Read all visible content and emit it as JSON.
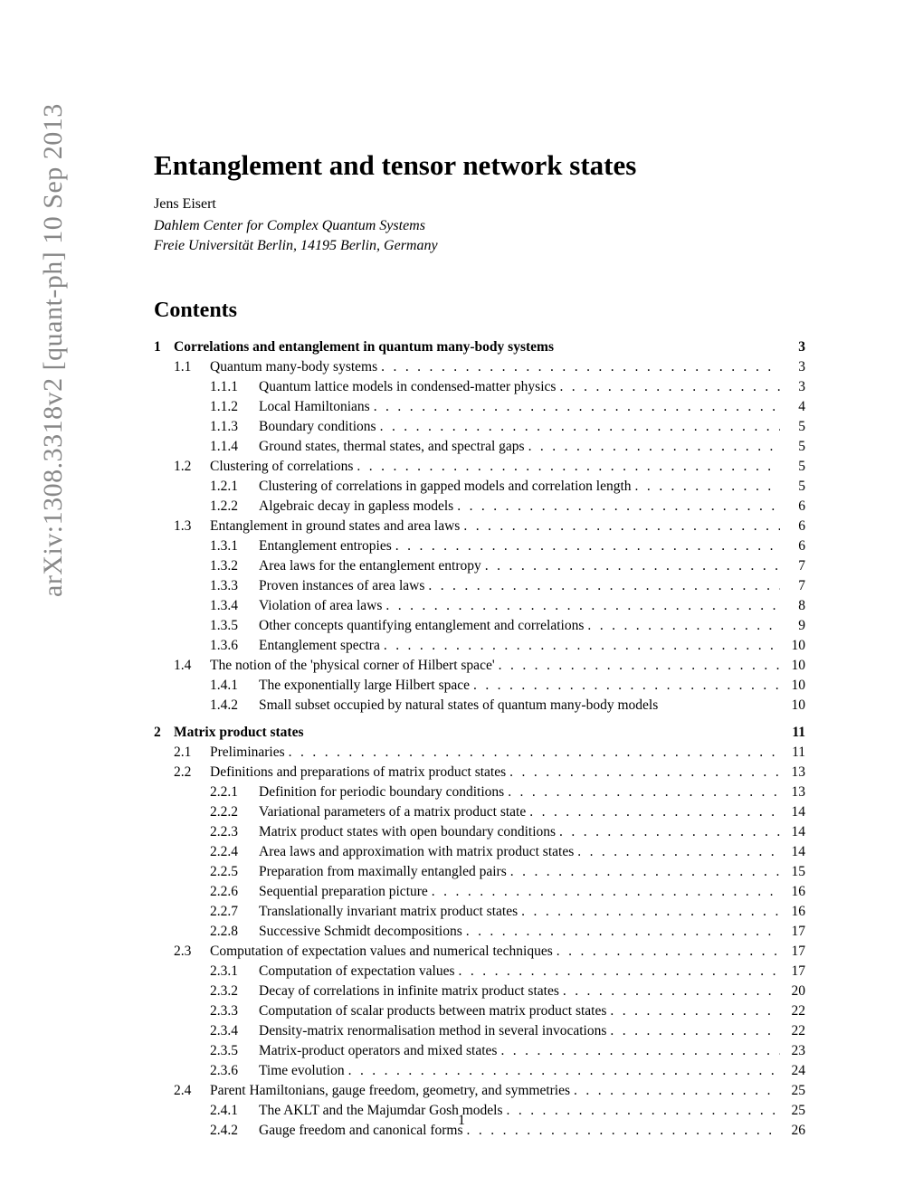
{
  "arxiv_stamp": "arXiv:1308.3318v2  [quant-ph]  10 Sep 2013",
  "title": "Entanglement and tensor network states",
  "author": "Jens Eisert",
  "affiliation_line1": "Dahlem Center for Complex Quantum Systems",
  "affiliation_line2": "Freie Universität Berlin, 14195 Berlin, Germany",
  "contents_heading": "Contents",
  "page_number": "1",
  "toc": [
    {
      "level": 1,
      "num": "1",
      "label": "Correlations and entanglement in quantum many-body systems",
      "page": "3",
      "no_dots": true
    },
    {
      "level": 2,
      "num": "1.1",
      "label": "Quantum many-body systems",
      "page": "3"
    },
    {
      "level": 3,
      "num": "1.1.1",
      "label": "Quantum lattice models in condensed-matter physics",
      "page": "3"
    },
    {
      "level": 3,
      "num": "1.1.2",
      "label": "Local Hamiltonians",
      "page": "4"
    },
    {
      "level": 3,
      "num": "1.1.3",
      "label": "Boundary conditions",
      "page": "5"
    },
    {
      "level": 3,
      "num": "1.1.4",
      "label": "Ground states, thermal states, and spectral gaps",
      "page": "5"
    },
    {
      "level": 2,
      "num": "1.2",
      "label": "Clustering of correlations",
      "page": "5"
    },
    {
      "level": 3,
      "num": "1.2.1",
      "label": "Clustering of correlations in gapped models and correlation length",
      "page": "5"
    },
    {
      "level": 3,
      "num": "1.2.2",
      "label": "Algebraic decay in gapless models",
      "page": "6"
    },
    {
      "level": 2,
      "num": "1.3",
      "label": "Entanglement in ground states and area laws",
      "page": "6"
    },
    {
      "level": 3,
      "num": "1.3.1",
      "label": "Entanglement entropies",
      "page": "6"
    },
    {
      "level": 3,
      "num": "1.3.2",
      "label": "Area laws for the entanglement entropy",
      "page": "7"
    },
    {
      "level": 3,
      "num": "1.3.3",
      "label": "Proven instances of area laws",
      "page": "7"
    },
    {
      "level": 3,
      "num": "1.3.4",
      "label": "Violation of area laws",
      "page": "8"
    },
    {
      "level": 3,
      "num": "1.3.5",
      "label": "Other concepts quantifying entanglement and correlations",
      "page": "9"
    },
    {
      "level": 3,
      "num": "1.3.6",
      "label": "Entanglement spectra",
      "page": "10"
    },
    {
      "level": 2,
      "num": "1.4",
      "label": "The notion of the 'physical corner of Hilbert space'",
      "page": "10"
    },
    {
      "level": 3,
      "num": "1.4.1",
      "label": "The exponentially large Hilbert space",
      "page": "10"
    },
    {
      "level": 3,
      "num": "1.4.2",
      "label": "Small subset occupied by natural states of quantum many-body models",
      "page": "10",
      "no_dots": true
    },
    {
      "gap": true
    },
    {
      "level": 1,
      "num": "2",
      "label": "Matrix product states",
      "page": "11",
      "no_dots": true
    },
    {
      "level": 2,
      "num": "2.1",
      "label": "Preliminaries",
      "page": "11"
    },
    {
      "level": 2,
      "num": "2.2",
      "label": "Definitions and preparations of matrix product states",
      "page": "13"
    },
    {
      "level": 3,
      "num": "2.2.1",
      "label": "Definition for periodic boundary conditions",
      "page": "13"
    },
    {
      "level": 3,
      "num": "2.2.2",
      "label": "Variational parameters of a matrix product state",
      "page": "14"
    },
    {
      "level": 3,
      "num": "2.2.3",
      "label": "Matrix product states with open boundary conditions",
      "page": "14"
    },
    {
      "level": 3,
      "num": "2.2.4",
      "label": "Area laws and approximation with matrix product states",
      "page": "14"
    },
    {
      "level": 3,
      "num": "2.2.5",
      "label": "Preparation from maximally entangled pairs",
      "page": "15"
    },
    {
      "level": 3,
      "num": "2.2.6",
      "label": "Sequential preparation picture",
      "page": "16"
    },
    {
      "level": 3,
      "num": "2.2.7",
      "label": "Translationally invariant matrix product states",
      "page": "16"
    },
    {
      "level": 3,
      "num": "2.2.8",
      "label": "Successive Schmidt decompositions",
      "page": "17"
    },
    {
      "level": 2,
      "num": "2.3",
      "label": "Computation of expectation values and numerical techniques",
      "page": "17"
    },
    {
      "level": 3,
      "num": "2.3.1",
      "label": "Computation of expectation values",
      "page": "17"
    },
    {
      "level": 3,
      "num": "2.3.2",
      "label": "Decay of correlations in infinite matrix product states",
      "page": "20"
    },
    {
      "level": 3,
      "num": "2.3.3",
      "label": "Computation of scalar products between matrix product states",
      "page": "22"
    },
    {
      "level": 3,
      "num": "2.3.4",
      "label": "Density-matrix renormalisation method in several invocations",
      "page": "22"
    },
    {
      "level": 3,
      "num": "2.3.5",
      "label": "Matrix-product operators and mixed states",
      "page": "23"
    },
    {
      "level": 3,
      "num": "2.3.6",
      "label": "Time evolution",
      "page": "24"
    },
    {
      "level": 2,
      "num": "2.4",
      "label": "Parent Hamiltonians, gauge freedom, geometry, and symmetries",
      "page": "25"
    },
    {
      "level": 3,
      "num": "2.4.1",
      "label": "The AKLT and the Majumdar Gosh models",
      "page": "25"
    },
    {
      "level": 3,
      "num": "2.4.2",
      "label": "Gauge freedom and canonical forms",
      "page": "26"
    }
  ]
}
